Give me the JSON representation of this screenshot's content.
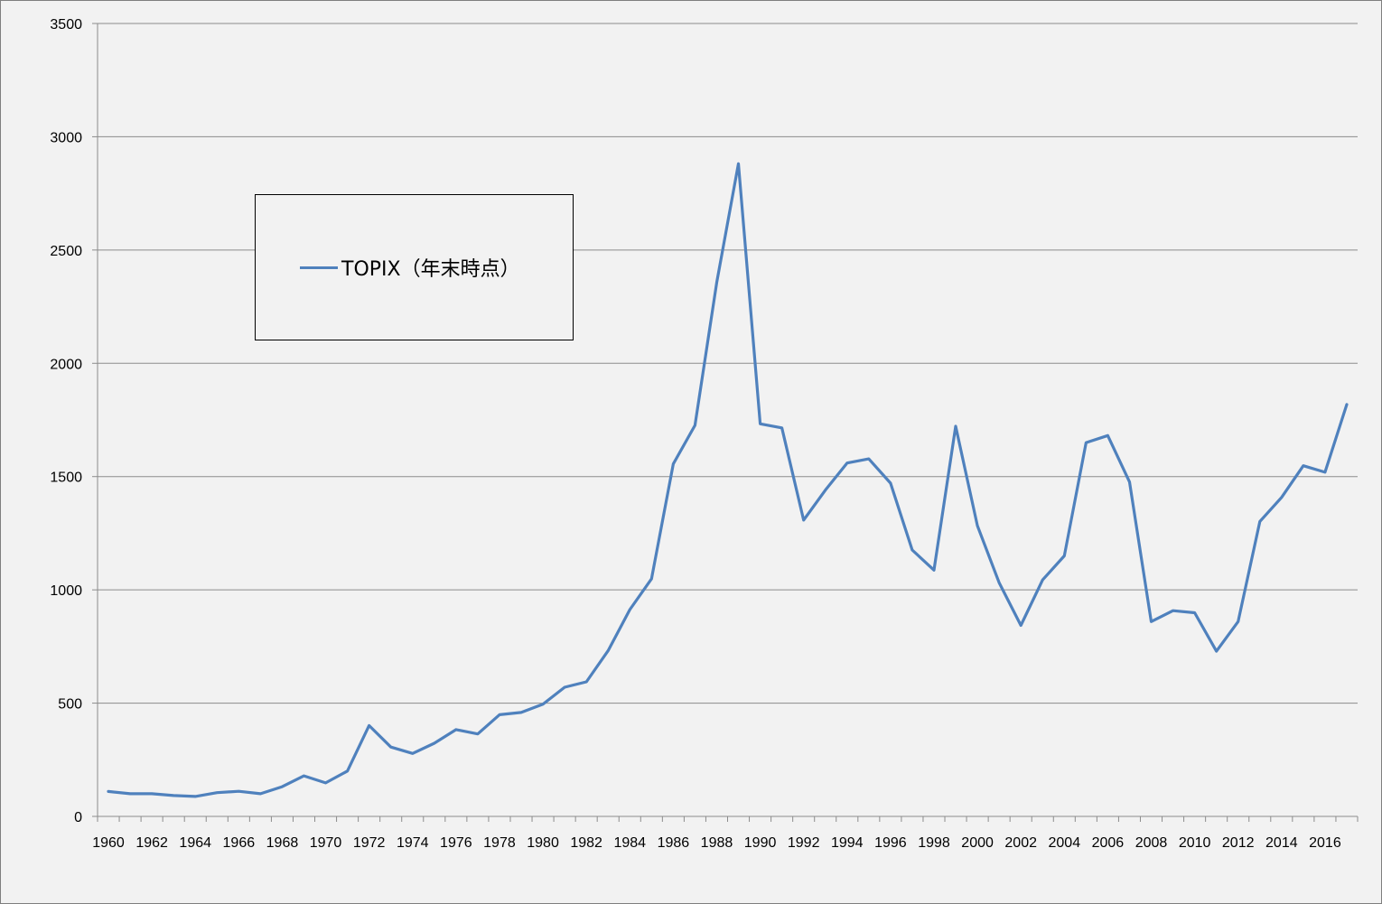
{
  "colors": {
    "line": "#4f81bd",
    "plot_background": "#f2f2f2",
    "gridline": "#8c8c8c",
    "axis": "#8c8c8c"
  },
  "chart_data": {
    "type": "line",
    "title": "",
    "xlabel": "",
    "ylabel": "",
    "ylim": [
      0,
      3500
    ],
    "yticks": [
      0,
      500,
      1000,
      1500,
      2000,
      2500,
      3000,
      3500
    ],
    "xtick_labels": [
      "1960",
      "1962",
      "1964",
      "1966",
      "1968",
      "1970",
      "1972",
      "1974",
      "1976",
      "1978",
      "1980",
      "1982",
      "1984",
      "1986",
      "1988",
      "1990",
      "1992",
      "1994",
      "1996",
      "1998",
      "2000",
      "2002",
      "2004",
      "2006",
      "2008",
      "2010",
      "2012",
      "2014",
      "2016"
    ],
    "grid": "horizontal",
    "legend_position": "upper-left",
    "categories": [
      1960,
      1961,
      1962,
      1963,
      1964,
      1965,
      1966,
      1967,
      1968,
      1969,
      1970,
      1971,
      1972,
      1973,
      1974,
      1975,
      1976,
      1977,
      1978,
      1979,
      1980,
      1981,
      1982,
      1983,
      1984,
      1985,
      1986,
      1987,
      1988,
      1989,
      1990,
      1991,
      1992,
      1993,
      1994,
      1995,
      1996,
      1997,
      1998,
      1999,
      2000,
      2001,
      2002,
      2003,
      2004,
      2005,
      2006,
      2007,
      2008,
      2009,
      2010,
      2011,
      2012,
      2013,
      2014,
      2015,
      2016,
      2017
    ],
    "series": [
      {
        "name": "TOPIX（年末時点）",
        "values": [
          110,
          100,
          100,
          92,
          88,
          105,
          111,
          100,
          131,
          179,
          148,
          200,
          401,
          306,
          278,
          323,
          383,
          364,
          449,
          459,
          495,
          570,
          594,
          731,
          913,
          1049,
          1556,
          1726,
          2357,
          2881,
          1733,
          1715,
          1308,
          1440,
          1560,
          1578,
          1471,
          1176,
          1087,
          1722,
          1283,
          1032,
          843,
          1044,
          1150,
          1650,
          1681,
          1476,
          860,
          908,
          899,
          729,
          860,
          1302,
          1408,
          1548,
          1519,
          1818
        ]
      }
    ]
  }
}
